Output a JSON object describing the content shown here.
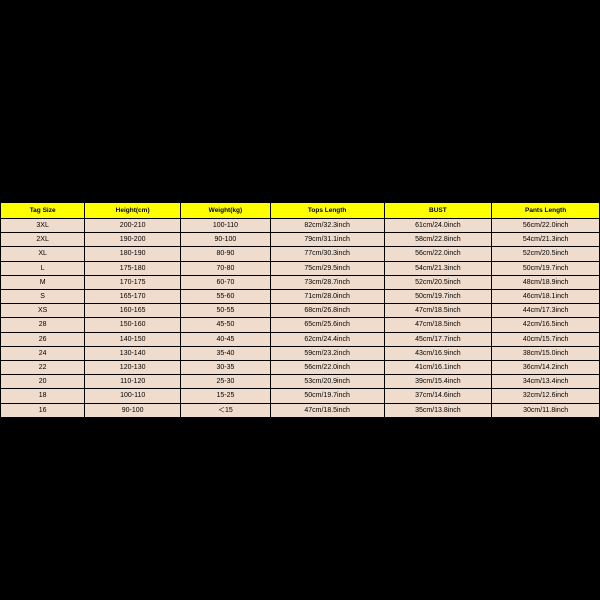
{
  "table": {
    "background_color": "#000000",
    "table_bg": "#f0dccd",
    "header_bg": "#ffff00",
    "border_color": "#000000",
    "header_fontsize": 6.5,
    "cell_fontsize": 7,
    "columns": [
      "Tag Size",
      "Height(cm)",
      "Weight(kg)",
      "Tops Length",
      "BUST",
      "Pants Length"
    ],
    "rows": [
      [
        "3XL",
        "200-210",
        "100-110",
        "82cm/32.3inch",
        "61cm/24.0inch",
        "56cm/22.0inch"
      ],
      [
        "2XL",
        "190-200",
        "90-100",
        "79cm/31.1inch",
        "58cm/22.8inch",
        "54cm/21.3inch"
      ],
      [
        "XL",
        "180-190",
        "80-90",
        "77cm/30.3inch",
        "56cm/22.0inch",
        "52cm/20.5inch"
      ],
      [
        "L",
        "175-180",
        "70-80",
        "75cm/29.5inch",
        "54cm/21.3inch",
        "50cm/19.7inch"
      ],
      [
        "M",
        "170-175",
        "60-70",
        "73cm/28.7inch",
        "52cm/20.5inch",
        "48cm/18.9inch"
      ],
      [
        "S",
        "165-170",
        "55-60",
        "71cm/28.0inch",
        "50cm/19.7inch",
        "46cm/18.1inch"
      ],
      [
        "XS",
        "160-165",
        "50-55",
        "68cm/26.8inch",
        "47cm/18.5inch",
        "44cm/17.3inch"
      ],
      [
        "28",
        "150-160",
        "45-50",
        "65cm/25.6inch",
        "47cm/18.5inch",
        "42cm/16.5inch"
      ],
      [
        "26",
        "140-150",
        "40-45",
        "62cm/24.4inch",
        "45cm/17.7inch",
        "40cm/15.7inch"
      ],
      [
        "24",
        "130-140",
        "35-40",
        "59cm/23.2inch",
        "43cm/16.9inch",
        "38cm/15.0inch"
      ],
      [
        "22",
        "120-130",
        "30-35",
        "56cm/22.0inch",
        "41cm/16.1inch",
        "36cm/14.2inch"
      ],
      [
        "20",
        "110-120",
        "25-30",
        "53cm/20.9inch",
        "39cm/15.4inch",
        "34cm/13.4inch"
      ],
      [
        "18",
        "100-110",
        "15-25",
        "50cm/19.7inch",
        "37cm/14.6inch",
        "32cm/12.6inch"
      ],
      [
        "16",
        "90-100",
        "＜15",
        "47cm/18.5inch",
        "35cm/13.8inch",
        "30cm/11.8inch"
      ]
    ]
  }
}
